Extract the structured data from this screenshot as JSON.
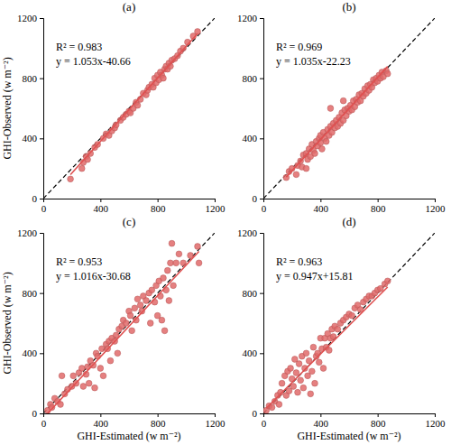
{
  "chart_data": [
    {
      "type": "scatter",
      "title": "(a)",
      "y_label": "GHI-Observed (w m⁻²)",
      "annotations": [
        "R² = 0.983",
        "y = 1.053x-40.66"
      ],
      "fit": {
        "slope": 1.053,
        "intercept": -40.66
      },
      "color": "#e06a6a",
      "marker": "circle",
      "xlim": [
        0,
        1200
      ],
      "ylim": [
        0,
        1200
      ],
      "xticks": [
        0,
        400,
        800,
        1200
      ],
      "yticks": [
        0,
        400,
        800,
        1200
      ],
      "x": [
        190,
        270,
        280,
        300,
        310,
        330,
        360,
        380,
        420,
        440,
        460,
        480,
        500,
        510,
        540,
        560,
        580,
        600,
        610,
        630,
        650,
        660,
        680,
        700,
        720,
        730,
        740,
        760,
        770,
        780,
        790,
        800,
        810,
        820,
        830,
        840,
        850,
        860,
        870,
        880,
        890,
        900,
        920,
        940,
        960,
        980,
        1010,
        1050,
        1080
      ],
      "values": [
        130,
        200,
        240,
        280,
        260,
        300,
        340,
        360,
        400,
        430,
        420,
        450,
        470,
        490,
        520,
        540,
        560,
        580,
        570,
        600,
        640,
        620,
        660,
        700,
        690,
        720,
        740,
        760,
        740,
        800,
        770,
        820,
        790,
        840,
        820,
        800,
        860,
        880,
        860,
        900,
        880,
        920,
        930,
        950,
        980,
        1000,
        1040,
        1080,
        1110
      ]
    },
    {
      "type": "scatter",
      "title": "(b)",
      "annotations": [
        "R² = 0.969",
        "y = 1.035x-22.23"
      ],
      "fit": {
        "slope": 1.035,
        "intercept": -22.23
      },
      "color": "#e06a6a",
      "marker": "circle",
      "xlim": [
        0,
        1200
      ],
      "ylim": [
        0,
        1200
      ],
      "xticks": [
        0,
        400,
        800,
        1200
      ],
      "yticks": [
        0,
        400,
        800,
        1200
      ],
      "x": [
        160,
        180,
        200,
        230,
        240,
        260,
        270,
        280,
        300,
        310,
        320,
        330,
        340,
        350,
        360,
        370,
        380,
        390,
        400,
        400,
        410,
        420,
        430,
        440,
        450,
        460,
        470,
        480,
        490,
        500,
        510,
        520,
        530,
        540,
        550,
        560,
        570,
        580,
        590,
        600,
        610,
        620,
        630,
        640,
        650,
        660,
        670,
        680,
        690,
        700,
        710,
        720,
        730,
        740,
        750,
        760,
        770,
        780,
        790,
        800,
        810,
        820,
        830,
        840,
        860,
        870,
        300,
        470,
        560
      ],
      "values": [
        140,
        180,
        200,
        160,
        220,
        250,
        210,
        290,
        300,
        260,
        330,
        280,
        360,
        320,
        300,
        380,
        350,
        400,
        370,
        420,
        330,
        440,
        400,
        380,
        460,
        420,
        480,
        440,
        500,
        470,
        520,
        480,
        540,
        500,
        570,
        520,
        590,
        550,
        600,
        580,
        620,
        590,
        650,
        610,
        660,
        640,
        690,
        650,
        700,
        680,
        730,
        700,
        750,
        720,
        760,
        740,
        790,
        770,
        800,
        780,
        820,
        800,
        840,
        810,
        850,
        830,
        200,
        600,
        650
      ]
    },
    {
      "type": "scatter",
      "title": "(c)",
      "x_label": "GHI-Estimated (w m⁻²)",
      "y_label": "GHI-Observed (w m⁻²)",
      "annotations": [
        "R² = 0.953",
        "y = 1.016x-30.68"
      ],
      "fit": {
        "slope": 1.016,
        "intercept": -30.68
      },
      "color": "#e06a6a",
      "marker": "circle",
      "xlim": [
        0,
        1200
      ],
      "ylim": [
        0,
        1200
      ],
      "xticks": [
        0,
        400,
        800,
        1200
      ],
      "yticks": [
        0,
        400,
        800,
        1200
      ],
      "x": [
        30,
        50,
        60,
        80,
        100,
        120,
        130,
        150,
        170,
        200,
        210,
        230,
        250,
        270,
        280,
        300,
        310,
        320,
        330,
        350,
        360,
        370,
        380,
        400,
        410,
        420,
        440,
        450,
        460,
        470,
        480,
        500,
        510,
        520,
        530,
        550,
        560,
        580,
        600,
        610,
        620,
        640,
        650,
        660,
        680,
        690,
        700,
        720,
        740,
        750,
        760,
        780,
        790,
        800,
        810,
        820,
        830,
        840,
        850,
        860,
        870,
        880,
        890,
        900,
        910,
        930,
        950,
        980,
        1030,
        1080,
        1090
      ],
      "values": [
        20,
        60,
        40,
        100,
        80,
        60,
        250,
        130,
        160,
        180,
        250,
        200,
        270,
        300,
        180,
        260,
        310,
        200,
        350,
        320,
        170,
        400,
        380,
        300,
        430,
        250,
        460,
        430,
        480,
        350,
        500,
        480,
        520,
        400,
        560,
        580,
        620,
        600,
        680,
        650,
        550,
        700,
        620,
        760,
        720,
        680,
        780,
        750,
        800,
        600,
        820,
        740,
        850,
        650,
        880,
        780,
        620,
        900,
        550,
        820,
        950,
        750,
        1000,
        1130,
        850,
        1000,
        1060,
        1000,
        1050,
        1110,
        1000
      ]
    },
    {
      "type": "scatter",
      "title": "(d)",
      "x_label": "GHI-Estimated (w m⁻²)",
      "annotations": [
        "R² = 0.963",
        "y = 0.947x+15.81"
      ],
      "fit": {
        "slope": 0.947,
        "intercept": 15.81
      },
      "color": "#e06a6a",
      "marker": "circle",
      "xlim": [
        0,
        1200
      ],
      "ylim": [
        0,
        1200
      ],
      "xticks": [
        0,
        400,
        800,
        1200
      ],
      "yticks": [
        0,
        400,
        800,
        1200
      ],
      "x": [
        20,
        40,
        60,
        80,
        100,
        110,
        120,
        130,
        150,
        160,
        170,
        180,
        190,
        200,
        210,
        220,
        230,
        240,
        250,
        260,
        270,
        280,
        290,
        300,
        310,
        320,
        330,
        340,
        350,
        360,
        370,
        380,
        390,
        400,
        410,
        420,
        430,
        440,
        450,
        460,
        470,
        480,
        490,
        500,
        520,
        540,
        560,
        580,
        600,
        620,
        640,
        660,
        680,
        700,
        720,
        740,
        760,
        780,
        800,
        820,
        850,
        870
      ],
      "values": [
        20,
        50,
        40,
        80,
        120,
        60,
        140,
        200,
        250,
        120,
        280,
        150,
        300,
        230,
        180,
        360,
        270,
        140,
        330,
        220,
        380,
        170,
        300,
        400,
        250,
        350,
        130,
        280,
        440,
        200,
        380,
        400,
        340,
        500,
        430,
        300,
        500,
        440,
        530,
        420,
        500,
        560,
        510,
        580,
        560,
        600,
        620,
        640,
        660,
        650,
        700,
        720,
        690,
        740,
        760,
        780,
        780,
        800,
        820,
        830,
        860,
        880
      ]
    }
  ]
}
